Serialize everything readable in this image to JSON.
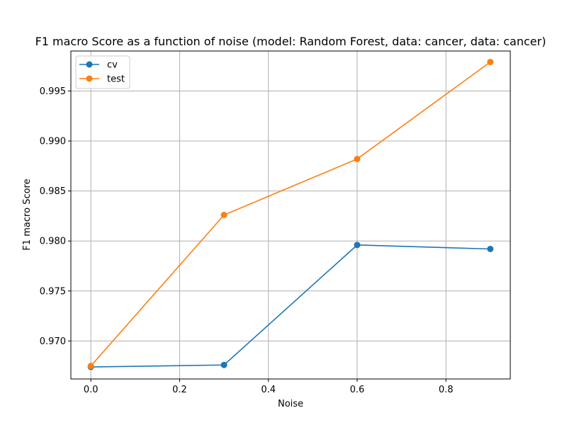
{
  "chart_data": {
    "type": "line",
    "title": "F1 macro Score as a function of noise (model: Random Forest, data: cancer, data: cancer)",
    "xlabel": "Noise",
    "ylabel": "F1 macro Score",
    "xlim": [
      -0.045,
      0.945
    ],
    "ylim": [
      0.9662,
      0.999
    ],
    "xticks": [
      0.0,
      0.2,
      0.4,
      0.6,
      0.8
    ],
    "xtick_labels": [
      "0.0",
      "0.2",
      "0.4",
      "0.6",
      "0.8"
    ],
    "yticks": [
      0.97,
      0.975,
      0.98,
      0.985,
      0.99,
      0.995
    ],
    "ytick_labels": [
      "0.970",
      "0.975",
      "0.980",
      "0.985",
      "0.990",
      "0.995"
    ],
    "grid": true,
    "legend_position": "top-left",
    "x": [
      0.0,
      0.3,
      0.6,
      0.9
    ],
    "series": [
      {
        "name": "cv",
        "color": "#1f77b4",
        "values": [
          0.9674,
          0.9676,
          0.9796,
          0.9792
        ]
      },
      {
        "name": "test",
        "color": "#ff7f0e",
        "values": [
          0.9675,
          0.9826,
          0.9882,
          0.9979
        ]
      }
    ]
  }
}
